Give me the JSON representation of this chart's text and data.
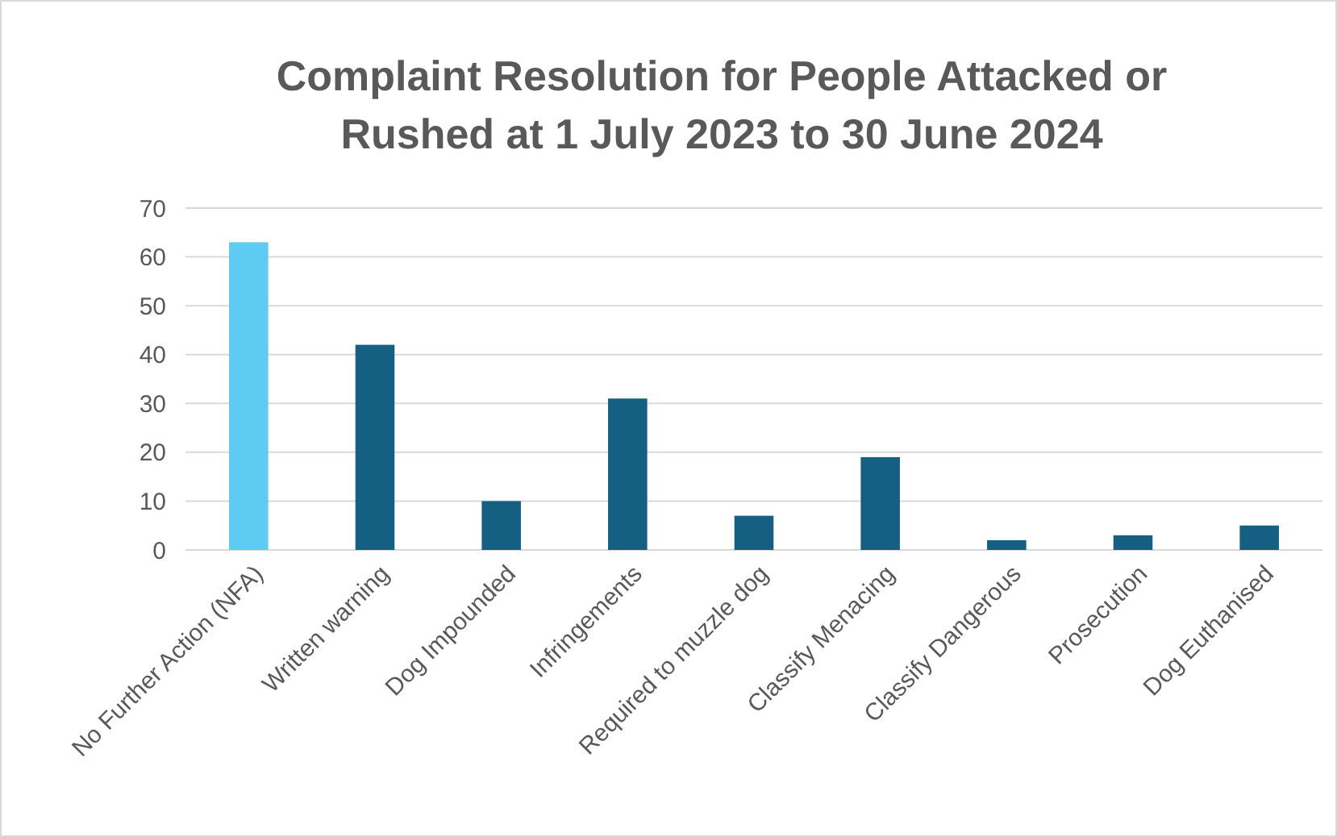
{
  "chart_data": {
    "type": "bar",
    "title": "Complaint Resolution for People Attacked or Rushed at 1 July 2023 to 30 June 2024",
    "categories": [
      "No Further Action (NFA)",
      "Written warning",
      "Dog Impounded",
      "Infringements",
      "Required to muzzle dog",
      "Classify Menacing",
      "Classify Dangerous",
      "Prosecution",
      "Dog Euthanised"
    ],
    "values": [
      63,
      42,
      10,
      31,
      7,
      19,
      2,
      3,
      5
    ],
    "colors": [
      "#5ecbf3",
      "#155f82",
      "#155f82",
      "#155f82",
      "#155f82",
      "#155f82",
      "#155f82",
      "#155f82",
      "#155f82"
    ],
    "ylim": [
      0,
      70
    ],
    "yticks": [
      0,
      10,
      20,
      30,
      40,
      50,
      60,
      70
    ],
    "grid": "y"
  }
}
